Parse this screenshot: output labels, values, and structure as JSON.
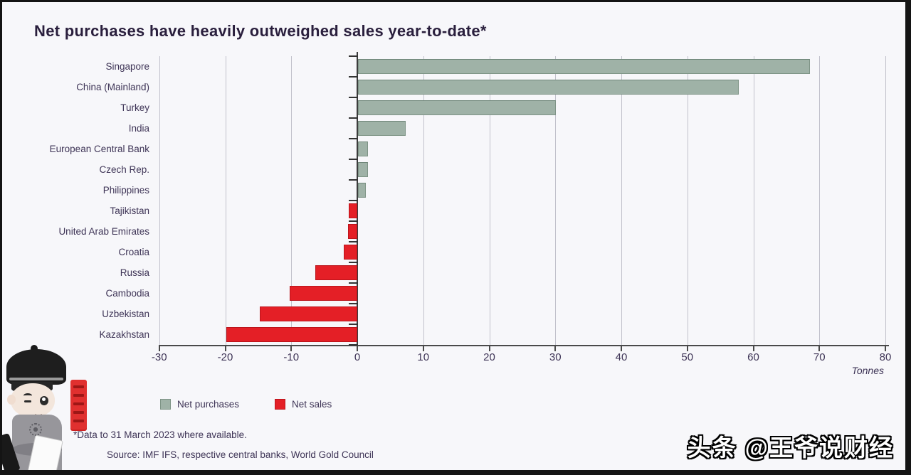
{
  "title": "Net purchases have heavily outweighed sales year-to-date*",
  "chart_data": {
    "type": "bar",
    "orientation": "horizontal",
    "title": "Net purchases have heavily outweighed sales year-to-date*",
    "categories": [
      "Singapore",
      "China (Mainland)",
      "Turkey",
      "India",
      "European Central Bank",
      "Czech Rep.",
      "Philippines",
      "Tajikistan",
      "United Arab Emirates",
      "Croatia",
      "Russia",
      "Cambodia",
      "Uzbekistan",
      "Kazakhstan"
    ],
    "values": [
      68.5,
      57.7,
      30.0,
      7.2,
      1.5,
      1.5,
      1.2,
      -1.3,
      -1.4,
      -2.1,
      -6.4,
      -10.2,
      -14.8,
      -19.8
    ],
    "xlabel": "Tonnes",
    "xlim": [
      -30,
      80
    ],
    "xticks": [
      -30,
      -20,
      -10,
      0,
      10,
      20,
      30,
      40,
      50,
      60,
      70,
      80
    ],
    "grid": true,
    "legend_position": "bottom-left",
    "series": [
      {
        "name": "Net purchases",
        "rule": "positive values",
        "color": "#9fb2a7"
      },
      {
        "name": "Net sales",
        "rule": "negative values",
        "color": "#e41f26"
      }
    ]
  },
  "legend": {
    "purchases_label": "Net purchases",
    "sales_label": "Net sales"
  },
  "axis": {
    "tonnes_label": "Tonnes"
  },
  "footnotes": {
    "line1": "*Data to 31 March 2023 where available.",
    "line2": "Source: IMF IFS, respective central banks, World Gold Council"
  },
  "watermark": "头条 @王爷说财经",
  "colors": {
    "purchases": "#9fb2a7",
    "sales": "#e41f26",
    "text": "#3e3456",
    "title": "#2a1f3d",
    "grid": "#c1c1cb",
    "background": "#f7f7fa"
  }
}
